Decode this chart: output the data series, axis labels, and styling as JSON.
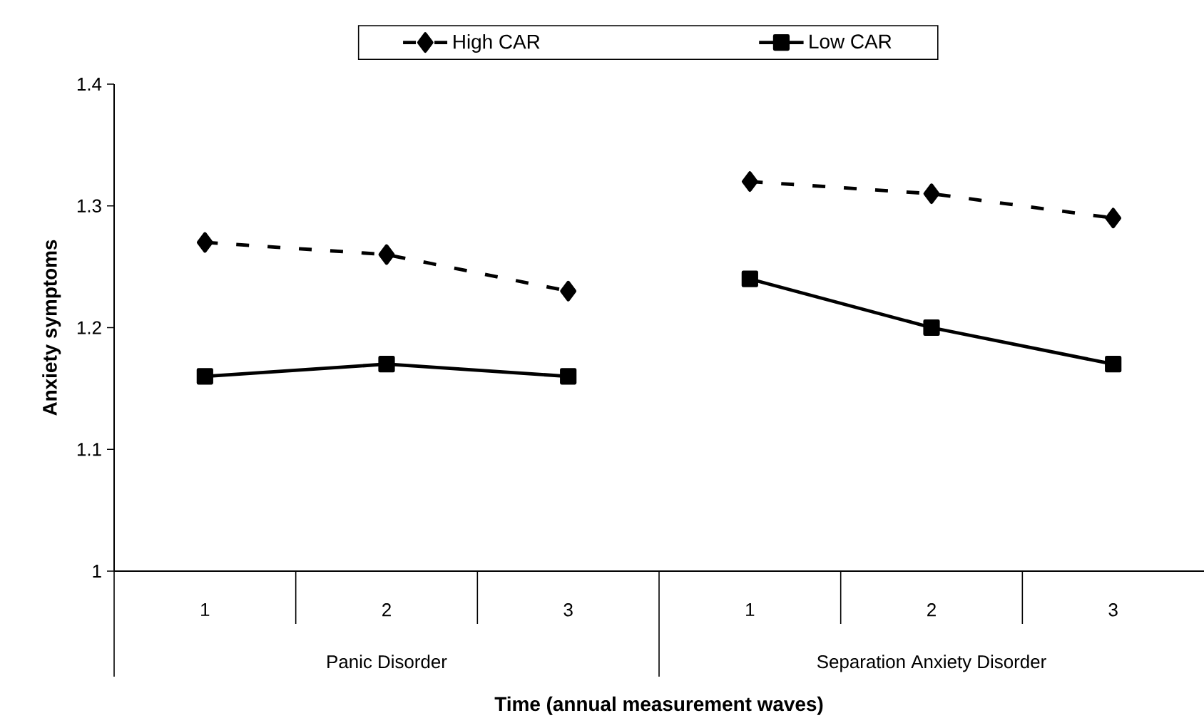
{
  "chart_data": {
    "type": "line",
    "xlabel": "Time (annual measurement waves)",
    "ylabel": "Anxiety symptoms",
    "categories": [
      "1",
      "2",
      "3",
      "1",
      "2",
      "3"
    ],
    "annotations": [
      "Panic Disorder",
      "Separation Anxiety Disorder"
    ],
    "series": [
      {
        "name": "High CAR",
        "color": "#000000",
        "marker": "diamond",
        "line_style": "dashed",
        "values": [
          1.27,
          1.26,
          1.23,
          1.32,
          1.31,
          1.29
        ]
      },
      {
        "name": "Low CAR",
        "color": "#000000",
        "marker": "square",
        "line_style": "solid",
        "values": [
          1.16,
          1.17,
          1.16,
          1.24,
          1.2,
          1.17
        ]
      }
    ],
    "ylim": [
      1,
      1.4
    ],
    "yticks": [
      1,
      1.1,
      1.2,
      1.3,
      1.4
    ],
    "legend": "top",
    "grid": false
  }
}
